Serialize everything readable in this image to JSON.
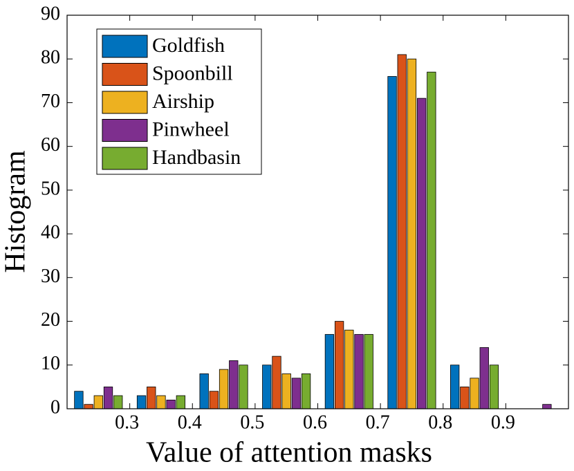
{
  "chart_data": {
    "type": "bar",
    "x_label": "Value of attention masks",
    "y_label": "Histogram",
    "x": [
      0.25,
      0.35,
      0.45,
      0.55,
      0.65,
      0.75,
      0.85,
      0.95
    ],
    "series": [
      {
        "name": "Goldfish",
        "color": "#0072BD",
        "values": [
          4,
          3,
          8,
          10,
          17,
          76,
          10,
          0
        ]
      },
      {
        "name": "Spoonbill",
        "color": "#D95319",
        "values": [
          1,
          5,
          4,
          12,
          20,
          81,
          5,
          0
        ]
      },
      {
        "name": "Airship",
        "color": "#EDB120",
        "values": [
          3,
          3,
          9,
          8,
          18,
          80,
          7,
          0
        ]
      },
      {
        "name": "Pinwheel",
        "color": "#7E2F8E",
        "values": [
          5,
          2,
          11,
          7,
          17,
          71,
          14,
          1
        ]
      },
      {
        "name": "Handbasin",
        "color": "#77AC30",
        "values": [
          3,
          3,
          10,
          8,
          17,
          77,
          10,
          0
        ]
      }
    ],
    "xlim": [
      0.2,
      1.0
    ],
    "xticks": [
      0.3,
      0.4,
      0.5,
      0.6,
      0.7,
      0.8,
      0.9
    ],
    "ylim": [
      0,
      90
    ],
    "yticks": [
      0,
      10,
      20,
      30,
      40,
      50,
      60,
      70,
      80,
      90
    ],
    "grid": false,
    "legend": "upper left"
  }
}
